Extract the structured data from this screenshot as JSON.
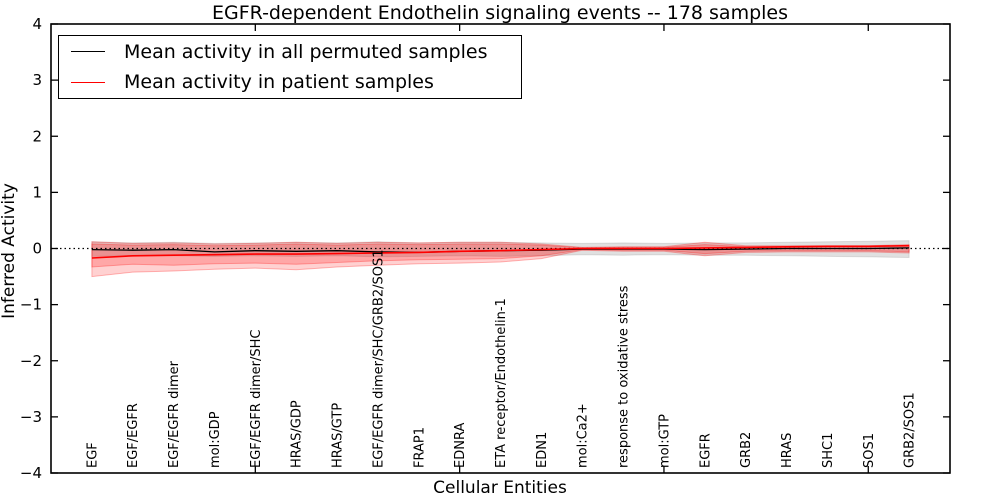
{
  "title": "EGFR-dependent Endothelin signaling events -- 178 samples",
  "axes": {
    "ylabel": "Inferred Activity",
    "xlabel": "Cellular Entities"
  },
  "legend": {
    "position": "upper left",
    "entries": [
      {
        "label": "Mean activity in all permuted samples",
        "color": "#000000"
      },
      {
        "label": "Mean activity in patient samples",
        "color": "#ff0000"
      }
    ]
  },
  "colors": {
    "frame": "#000000",
    "permuted_line": "#000000",
    "patient_line": "#ff0000",
    "permuted_band_fill": "rgba(0,0,0,0.12)",
    "patient_band_fill": "rgba(255,0,0,0.18)",
    "zero_line": "#000000",
    "background": "#ffffff"
  },
  "chart_data": {
    "type": "line",
    "title": "EGFR-dependent Endothelin signaling events -- 178 samples",
    "xlabel": "Cellular Entities",
    "ylabel": "Inferred Activity",
    "ylim": [
      -4,
      4
    ],
    "yticks": [
      -4,
      -3,
      -2,
      -1,
      0,
      1,
      2,
      3,
      4
    ],
    "x_range": [
      0,
      22
    ],
    "x_numeric_ticks": [
      5,
      10,
      15,
      20
    ],
    "grid": false,
    "legend_position": "upper left",
    "zero_reference_line": {
      "y": 0,
      "style": "dotted",
      "color": "#000000"
    },
    "categories": [
      "EGF",
      "EGF/EGFR",
      "EGF/EGFR dimer",
      "mol:GDP",
      "EGF/EGFR dimer/SHC",
      "HRAS/GDP",
      "HRAS/GTP",
      "EGF/EGFR dimer/SHC/GRB2/SOS1",
      "FRAP1",
      "EDNRA",
      "ETA receptor/Endothelin-1",
      "EDN1",
      "mol:Ca2+",
      "response to oxidative stress",
      "mol:GTP",
      "EGFR",
      "GRB2",
      "HRAS",
      "SHC1",
      "SOS1",
      "GRB2/SOS1"
    ],
    "series": [
      {
        "name": "Mean activity in all permuted samples",
        "color": "#000000",
        "linewidth": 1.3,
        "values": [
          -0.02,
          -0.03,
          -0.02,
          -0.06,
          -0.04,
          -0.05,
          -0.04,
          -0.06,
          -0.07,
          -0.05,
          -0.04,
          -0.03,
          -0.01,
          -0.01,
          -0.01,
          -0.02,
          -0.01,
          0.0,
          0.0,
          0.0,
          0.01
        ]
      },
      {
        "name": "Mean activity in patient samples",
        "color": "#ff0000",
        "linewidth": 1.6,
        "values": [
          -0.17,
          -0.13,
          -0.12,
          -0.11,
          -0.1,
          -0.1,
          -0.09,
          -0.08,
          -0.07,
          -0.05,
          -0.04,
          -0.02,
          0.0,
          0.0,
          0.0,
          0.01,
          0.02,
          0.03,
          0.04,
          0.04,
          0.05
        ]
      }
    ],
    "bands": [
      {
        "name": "permuted-samples-range",
        "fill": "rgba(0,0,0,0.12)",
        "edge": "rgba(0,0,0,0.10)",
        "upper": [
          0.12,
          0.1,
          0.11,
          0.09,
          0.1,
          0.11,
          0.1,
          0.12,
          0.1,
          0.11,
          0.11,
          0.1,
          0.09,
          0.1,
          0.09,
          0.1,
          0.1,
          0.11,
          0.12,
          0.13,
          0.14
        ],
        "lower": [
          -0.14,
          -0.13,
          -0.13,
          -0.14,
          -0.13,
          -0.14,
          -0.13,
          -0.15,
          -0.14,
          -0.13,
          -0.14,
          -0.13,
          -0.11,
          -0.12,
          -0.11,
          -0.12,
          -0.12,
          -0.13,
          -0.14,
          -0.15,
          -0.16
        ]
      },
      {
        "name": "patient-samples-range-outer",
        "fill": "rgba(255,0,0,0.18)",
        "edge": "rgba(255,0,0,0.28)",
        "upper": [
          0.12,
          0.09,
          0.1,
          0.08,
          0.09,
          0.11,
          0.09,
          0.11,
          0.1,
          0.11,
          0.11,
          0.08,
          0.02,
          0.03,
          0.03,
          0.11,
          0.05,
          0.05,
          0.05,
          0.05,
          0.07
        ],
        "lower": [
          -0.5,
          -0.42,
          -0.4,
          -0.37,
          -0.35,
          -0.38,
          -0.33,
          -0.3,
          -0.27,
          -0.26,
          -0.24,
          -0.18,
          -0.03,
          -0.05,
          -0.05,
          -0.13,
          -0.07,
          -0.06,
          -0.06,
          -0.06,
          -0.08
        ]
      },
      {
        "name": "patient-samples-range-inner",
        "fill": "rgba(255,0,0,0.20)",
        "edge": "rgba(255,0,0,0.28)",
        "upper": [
          0.08,
          0.06,
          0.07,
          0.05,
          0.06,
          0.08,
          0.06,
          0.08,
          0.07,
          0.08,
          0.08,
          0.06,
          0.01,
          0.02,
          0.02,
          0.07,
          0.03,
          0.03,
          0.03,
          0.03,
          0.05
        ],
        "lower": [
          -0.33,
          -0.28,
          -0.3,
          -0.27,
          -0.26,
          -0.28,
          -0.25,
          -0.22,
          -0.2,
          -0.19,
          -0.18,
          -0.13,
          -0.02,
          -0.03,
          -0.03,
          -0.09,
          -0.05,
          -0.04,
          -0.04,
          -0.04,
          -0.06
        ]
      }
    ]
  }
}
